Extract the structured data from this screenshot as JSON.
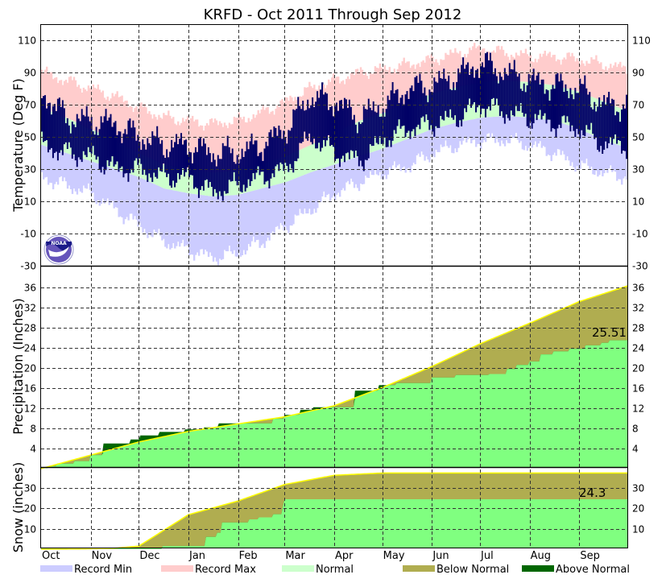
{
  "chart_data": [
    {
      "type": "bar",
      "panel": "temperature",
      "title": "KRFD - Oct 2011 Through Sep 2012",
      "ylabel": "Temperature (Deg F)",
      "ylim": [
        -30,
        120
      ],
      "yticks": [
        110,
        90,
        70,
        50,
        30,
        10,
        -10,
        -30
      ],
      "x_unit": "day of period (0 = Oct 1), semi-monthly anchors",
      "anchor_days": [
        0,
        15.25,
        30.5,
        45.75,
        61,
        76.25,
        91.5,
        106.75,
        122,
        137.25,
        152.5,
        167.75,
        183,
        198.25,
        213.5,
        228.75,
        244,
        259.25,
        274.5,
        289.75,
        305,
        320.25,
        335.5,
        350.75,
        366
      ],
      "normal_high": [
        68,
        62,
        55,
        48,
        40,
        33,
        30,
        28,
        29,
        33,
        38,
        45,
        52,
        60,
        65,
        71,
        77,
        81,
        84,
        85,
        84,
        82,
        78,
        72,
        66
      ],
      "normal_low": [
        45,
        40,
        35,
        30,
        25,
        18,
        15,
        13,
        14,
        18,
        22,
        28,
        33,
        38,
        43,
        49,
        55,
        59,
        62,
        63,
        62,
        60,
        55,
        48,
        43
      ],
      "record_high": [
        90,
        85,
        80,
        75,
        68,
        62,
        60,
        58,
        60,
        65,
        72,
        80,
        85,
        90,
        92,
        95,
        98,
        102,
        105,
        102,
        100,
        100,
        98,
        95,
        92
      ],
      "record_low": [
        25,
        20,
        15,
        5,
        -5,
        -15,
        -20,
        -25,
        -22,
        -15,
        -5,
        5,
        15,
        22,
        28,
        32,
        40,
        45,
        48,
        48,
        45,
        40,
        32,
        28,
        25
      ],
      "observed_high": [
        78,
        62,
        60,
        58,
        50,
        45,
        45,
        40,
        40,
        45,
        55,
        75,
        72,
        62,
        70,
        80,
        82,
        88,
        96,
        90,
        85,
        82,
        80,
        70,
        70
      ],
      "observed_low": [
        45,
        40,
        38,
        30,
        30,
        25,
        25,
        15,
        20,
        25,
        30,
        50,
        40,
        35,
        48,
        55,
        58,
        62,
        70,
        65,
        62,
        58,
        55,
        45,
        45
      ]
    },
    {
      "type": "area",
      "panel": "precipitation",
      "ylabel": "Precipitation (Inches)",
      "ylim": [
        0,
        38
      ],
      "yticks": [
        4,
        8,
        12,
        16,
        20,
        24,
        28,
        32,
        36
      ],
      "normal_days": [
        0,
        31,
        61,
        92,
        123,
        152,
        183,
        213,
        244,
        274,
        305,
        336,
        366
      ],
      "normal_cumulative": [
        0,
        2.7,
        5.3,
        7.4,
        8.9,
        10.3,
        12.5,
        16.1,
        20.3,
        24.8,
        28.9,
        33.2,
        36.3
      ],
      "observed_steps": [
        [
          0,
          0.1
        ],
        [
          5,
          0.5
        ],
        [
          10,
          1.0
        ],
        [
          21,
          1.5
        ],
        [
          31,
          2.7
        ],
        [
          39,
          5.0
        ],
        [
          56,
          5.8
        ],
        [
          62,
          6.6
        ],
        [
          74,
          7.3
        ],
        [
          90,
          7.8
        ],
        [
          102,
          8.2
        ],
        [
          111,
          9.0
        ],
        [
          145,
          9.9
        ],
        [
          152,
          10.7
        ],
        [
          162,
          11.7
        ],
        [
          170,
          12.2
        ],
        [
          196,
          15.5
        ],
        [
          211,
          16.6
        ],
        [
          222,
          17.0
        ],
        [
          244,
          18.1
        ],
        [
          259,
          18.6
        ],
        [
          280,
          18.8
        ],
        [
          291,
          19.8
        ],
        [
          297,
          20.6
        ],
        [
          305,
          21.3
        ],
        [
          312,
          22.7
        ],
        [
          320,
          23.3
        ],
        [
          330,
          23.8
        ],
        [
          340,
          24.5
        ],
        [
          350,
          25.0
        ],
        [
          355,
          25.51
        ]
      ],
      "annotation": "25.51"
    },
    {
      "type": "area",
      "panel": "snow",
      "ylabel": "Snow (inches)",
      "ylim": [
        0,
        39
      ],
      "yticks": [
        10,
        20,
        30
      ],
      "normal_days": [
        0,
        23,
        45,
        61,
        92,
        123,
        152,
        183,
        213,
        366
      ],
      "normal_cumulative": [
        0,
        0.1,
        0.4,
        1.5,
        16.8,
        23.5,
        31.5,
        36.0,
        37.1,
        37.1
      ],
      "observed_steps": [
        [
          0,
          0
        ],
        [
          76,
          1.5
        ],
        [
          103,
          6
        ],
        [
          110,
          8
        ],
        [
          113,
          13
        ],
        [
          130,
          14.5
        ],
        [
          136,
          15.5
        ],
        [
          145,
          17
        ],
        [
          151,
          21
        ],
        [
          152,
          24.3
        ]
      ],
      "annotation": "24.3"
    }
  ],
  "x_axis": {
    "months": [
      "Oct",
      "Nov",
      "Dec",
      "Jan",
      "Feb",
      "Mar",
      "Apr",
      "May",
      "Jun",
      "Jul",
      "Aug",
      "Sep"
    ],
    "month_start_days": [
      0,
      31,
      61,
      92,
      123,
      152,
      183,
      213,
      244,
      274,
      305,
      336
    ],
    "total_days": 366
  },
  "legend": [
    {
      "label": "Record Min",
      "color": "#ccccff"
    },
    {
      "label": "Record Max",
      "color": "#ffcccc"
    },
    {
      "label": "Normal",
      "color": "#ccffcc"
    },
    {
      "label": "Below Normal",
      "color": "#b0ad50"
    },
    {
      "label": "Above Normal",
      "color": "#006600"
    }
  ],
  "colors": {
    "observed_temp": "#000066",
    "observed_fill": "#80ff80",
    "normal_line": "#ffff00"
  },
  "logo": {
    "text": "NOAA"
  }
}
